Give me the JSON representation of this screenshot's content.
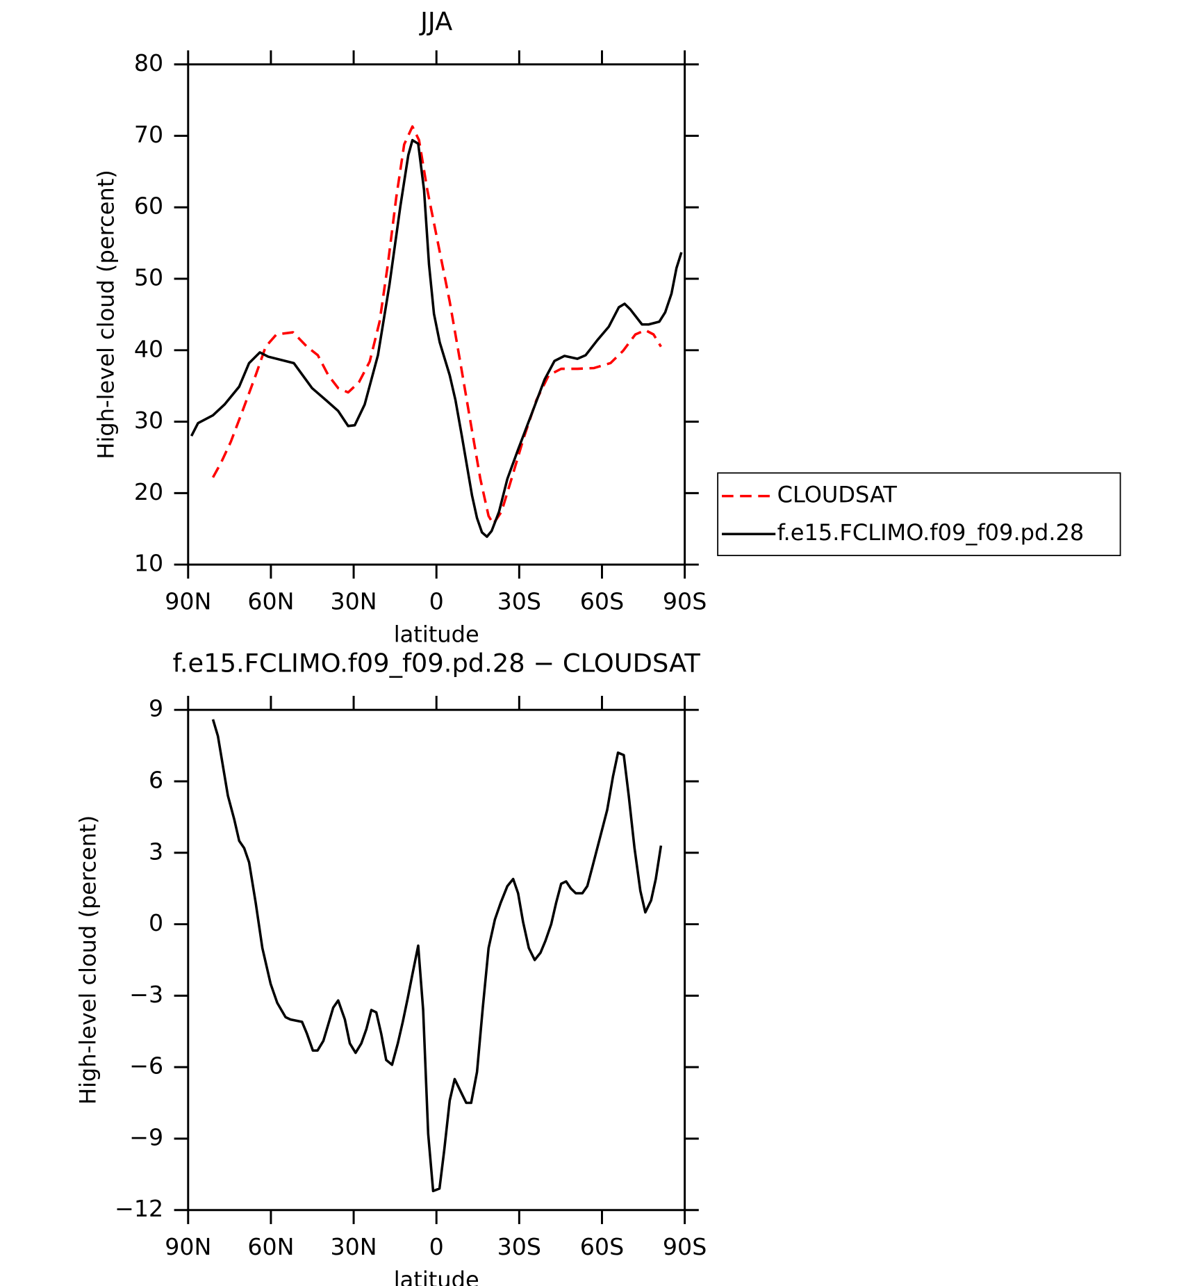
{
  "chart_data": [
    {
      "type": "line",
      "title": "JJA",
      "x_label": "latitude",
      "y_label": "High-level cloud (percent)",
      "xlim": [
        90,
        -90
      ],
      "xticks": [
        {
          "value": 90,
          "label": "90N"
        },
        {
          "value": 60,
          "label": "60N"
        },
        {
          "value": 30,
          "label": "30N"
        },
        0,
        {
          "value": -30,
          "label": "30S"
        },
        {
          "value": -60,
          "label": "60S"
        },
        {
          "value": -90,
          "label": "90S"
        }
      ],
      "ylim": [
        10,
        80
      ],
      "yticks": [
        10,
        20,
        30,
        40,
        50,
        60,
        70,
        80
      ],
      "legend_position": "right",
      "series": [
        {
          "name": "CLOUDSAT",
          "color": "#ff0000",
          "line_style": "dashed",
          "x": [
            81,
            78,
            74.5,
            70,
            65.5,
            61.9,
            58,
            52,
            46.9,
            43,
            39.2,
            35.6,
            32,
            28.1,
            24.2,
            20.6,
            17.6,
            14.6,
            11.7,
            8.7,
            6.3,
            3.3,
            -0.3,
            -4.8,
            -8.7,
            -12.3,
            -15.9,
            -18.9,
            -20.6,
            -23.6,
            -27.2,
            -31.7,
            -36.2,
            -40.7,
            -45.2,
            -51.1,
            -57.1,
            -63.1,
            -67.6,
            -72.1,
            -75.7,
            -78.7,
            -81.4
          ],
          "values": [
            22.2,
            24.3,
            27.2,
            31.8,
            36.5,
            40.5,
            42.2,
            42.5,
            40.5,
            39.3,
            36.5,
            34.7,
            34.1,
            35.5,
            38.4,
            44.0,
            52.0,
            61.3,
            68.8,
            71.3,
            69.4,
            62.4,
            55.5,
            46.8,
            38.2,
            30.1,
            22.0,
            16.8,
            15.7,
            17.4,
            22.0,
            27.8,
            33.0,
            36.5,
            37.4,
            37.4,
            37.5,
            38.2,
            39.9,
            42.2,
            42.8,
            42.2,
            40.5
          ]
        },
        {
          "name": "f.e15.FCLIMO.f09_f09.pd.28",
          "color": "#000000",
          "line_style": "solid",
          "x": [
            88.8,
            86.4,
            81,
            76.8,
            71.5,
            67.9,
            64,
            61,
            51.7,
            45.1,
            40,
            35.6,
            32,
            29.6,
            26,
            21.2,
            17,
            13.1,
            10.2,
            8.7,
            6.6,
            4.5,
            2.7,
            0.9,
            -1.2,
            -4.8,
            -6.9,
            -9.3,
            -12.9,
            -14.7,
            -16.5,
            -18.3,
            -20,
            -22.7,
            -25.7,
            -29.6,
            -34.7,
            -39.2,
            -42.8,
            -46.4,
            -51.1,
            -54.1,
            -58.3,
            -62.5,
            -66.1,
            -68.2,
            -70.3,
            -74.5,
            -76.9,
            -80.8,
            -82.9,
            -85.2,
            -87.0,
            -88.8
          ],
          "values": [
            28.0,
            29.8,
            30.9,
            32.4,
            34.9,
            38.2,
            39.7,
            39.1,
            38.2,
            34.7,
            33.0,
            31.5,
            29.4,
            29.5,
            32.4,
            39.3,
            49.2,
            60.1,
            67.3,
            69.4,
            68.9,
            62.4,
            52.0,
            45.1,
            41.1,
            36.5,
            33.0,
            27.8,
            19.7,
            16.5,
            14.5,
            13.9,
            14.7,
            17.4,
            22.0,
            26.1,
            31.3,
            35.9,
            38.5,
            39.2,
            38.8,
            39.3,
            41.4,
            43.3,
            46.0,
            46.5,
            45.7,
            43.6,
            43.6,
            44.0,
            45.3,
            47.9,
            51.5,
            53.7
          ]
        }
      ]
    },
    {
      "type": "line",
      "title": "f.e15.FCLIMO.f09_f09.pd.28 − CLOUDSAT",
      "x_label": "latitude",
      "y_label": "High-level cloud (percent)",
      "xlim": [
        90,
        -90
      ],
      "xticks": [
        {
          "value": 90,
          "label": "90N"
        },
        {
          "value": 60,
          "label": "60N"
        },
        {
          "value": 30,
          "label": "30N"
        },
        0,
        {
          "value": -30,
          "label": "30S"
        },
        {
          "value": -60,
          "label": "60S"
        },
        {
          "value": -90,
          "label": "90S"
        }
      ],
      "ylim": [
        -12,
        9
      ],
      "yticks": [
        {
          "value": -12,
          "label": "−12"
        },
        {
          "value": -9,
          "label": "−9"
        },
        {
          "value": -6,
          "label": "−6"
        },
        {
          "value": -3,
          "label": "−3"
        },
        0,
        3,
        6,
        9
      ],
      "color": "#000000",
      "x": [
        81,
        79.2,
        75.6,
        73.3,
        71.5,
        69.7,
        67.9,
        65.5,
        63.1,
        60.1,
        57.7,
        54.7,
        52.9,
        48.7,
        46.9,
        44.8,
        43.1,
        41,
        39.2,
        37.4,
        35.6,
        33.2,
        31.4,
        29.3,
        27.2,
        25.4,
        23.6,
        21.8,
        20,
        18.2,
        16.1,
        14,
        12.2,
        10.4,
        8.7,
        6.6,
        4.8,
        3.0,
        1.2,
        -1.1,
        -2.8,
        -4.8,
        -6.6,
        -8.7,
        -10.8,
        -12.6,
        -14.7,
        -16.8,
        -18.9,
        -21.2,
        -23.3,
        -25.7,
        -27.8,
        -29.6,
        -31.4,
        -33.5,
        -35.6,
        -37.7,
        -39.5,
        -41.6,
        -43.4,
        -45.2,
        -47.0,
        -48.7,
        -50.5,
        -52.9,
        -54.7,
        -56.5,
        -58.3,
        -60.1,
        -61.9,
        -64.0,
        -65.8,
        -67.9,
        -69.7,
        -71.8,
        -73.9,
        -75.7,
        -77.8,
        -79.5,
        -81.4
      ],
      "values": [
        8.6,
        7.9,
        5.4,
        4.4,
        3.5,
        3.2,
        2.6,
        0.9,
        -1.0,
        -2.5,
        -3.3,
        -3.9,
        -4.0,
        -4.1,
        -4.6,
        -5.3,
        -5.3,
        -4.9,
        -4.2,
        -3.5,
        -3.2,
        -4.0,
        -5.0,
        -5.4,
        -5.0,
        -4.4,
        -3.6,
        -3.7,
        -4.6,
        -5.7,
        -5.9,
        -5.0,
        -4.1,
        -3.1,
        -2.1,
        -0.9,
        -3.6,
        -8.8,
        -11.2,
        -11.1,
        -9.5,
        -7.4,
        -6.5,
        -7.0,
        -7.5,
        -7.5,
        -6.2,
        -3.5,
        -1.0,
        0.2,
        0.9,
        1.6,
        1.9,
        1.3,
        0.1,
        -1.0,
        -1.5,
        -1.2,
        -0.7,
        0.0,
        0.9,
        1.7,
        1.8,
        1.5,
        1.3,
        1.3,
        1.6,
        2.4,
        3.2,
        4.0,
        4.8,
        6.2,
        7.2,
        7.1,
        5.4,
        3.2,
        1.4,
        0.5,
        1.0,
        1.9,
        3.3
      ]
    }
  ]
}
